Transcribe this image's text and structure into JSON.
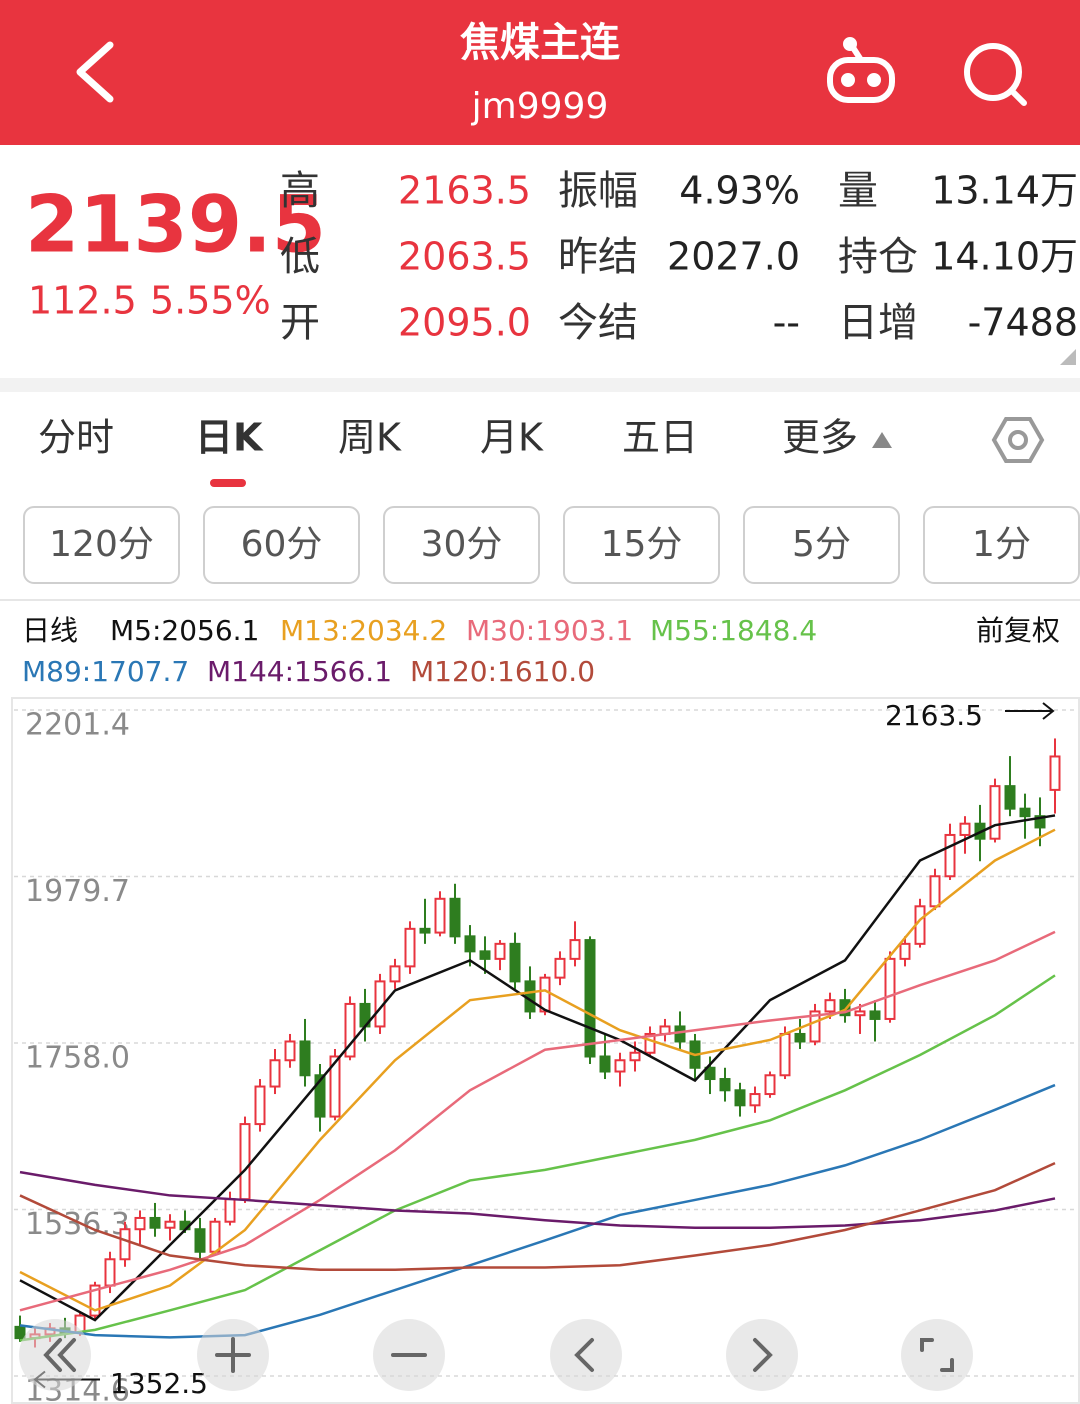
{
  "header": {
    "title": "焦煤主连",
    "code": "jm9999"
  },
  "quote": {
    "price": "2139.5",
    "change": "112.5",
    "change_pct": "5.55%",
    "rows": [
      [
        "高",
        "2163.5",
        "振幅",
        "4.93%",
        "量",
        "13.14万"
      ],
      [
        "低",
        "2063.5",
        "昨结",
        "2027.0",
        "持仓",
        "14.10万"
      ],
      [
        "开",
        "2095.0",
        "今结",
        "--",
        "日增",
        "-7488"
      ]
    ]
  },
  "tabs": [
    "分时",
    "日K",
    "周K",
    "月K",
    "五日",
    "更多"
  ],
  "intervals": [
    "120分",
    "60分",
    "30分",
    "15分",
    "5分",
    "1分"
  ],
  "chart_data": {
    "type": "candlestick",
    "label": "日线",
    "adjust": "前复权",
    "up_color": "#e8343f",
    "down_color": "#2e7d1f",
    "open": [
      1380,
      1365,
      1370,
      1378,
      1372,
      1395,
      1435,
      1470,
      1510,
      1525,
      1512,
      1520,
      1510,
      1480,
      1520,
      1550,
      1650,
      1700,
      1735,
      1760,
      1715,
      1660,
      1740,
      1810,
      1780,
      1840,
      1860,
      1910,
      1905,
      1950,
      1900,
      1880,
      1870,
      1890,
      1840,
      1800,
      1845,
      1870,
      1895,
      1740,
      1720,
      1735,
      1745,
      1770,
      1780,
      1760,
      1725,
      1710,
      1695,
      1675,
      1690,
      1715,
      1770,
      1760,
      1800,
      1815,
      1795,
      1800,
      1790,
      1870,
      1890,
      1940,
      1980,
      2035,
      2050,
      2030,
      2100,
      2070,
      2060,
      2095
    ],
    "high": [
      1395,
      1378,
      1385,
      1392,
      1400,
      1440,
      1480,
      1520,
      1535,
      1545,
      1530,
      1535,
      1525,
      1525,
      1560,
      1660,
      1710,
      1750,
      1770,
      1790,
      1730,
      1750,
      1820,
      1830,
      1850,
      1870,
      1920,
      1950,
      1960,
      1970,
      1915,
      1900,
      1895,
      1905,
      1860,
      1850,
      1880,
      1920,
      1900,
      1770,
      1745,
      1760,
      1780,
      1790,
      1800,
      1770,
      1740,
      1725,
      1705,
      1700,
      1720,
      1780,
      1790,
      1810,
      1825,
      1830,
      1810,
      1815,
      1880,
      1900,
      1950,
      1990,
      2050,
      2060,
      2075,
      2110,
      2140,
      2090,
      2085,
      2163.5
    ],
    "low": [
      1360,
      1352.5,
      1360,
      1365,
      1368,
      1390,
      1425,
      1460,
      1490,
      1500,
      1495,
      1505,
      1470,
      1475,
      1515,
      1545,
      1640,
      1690,
      1725,
      1700,
      1640,
      1655,
      1735,
      1760,
      1770,
      1830,
      1850,
      1890,
      1900,
      1890,
      1860,
      1850,
      1855,
      1830,
      1790,
      1795,
      1835,
      1860,
      1730,
      1710,
      1700,
      1720,
      1740,
      1760,
      1750,
      1710,
      1690,
      1680,
      1660,
      1665,
      1685,
      1710,
      1750,
      1755,
      1790,
      1785,
      1770,
      1760,
      1785,
      1860,
      1885,
      1935,
      1975,
      2010,
      2000,
      2025,
      2060,
      2030,
      2020,
      2063.5
    ],
    "close": [
      1365,
      1370,
      1378,
      1372,
      1395,
      1435,
      1470,
      1510,
      1525,
      1512,
      1520,
      1510,
      1480,
      1520,
      1550,
      1650,
      1700,
      1735,
      1760,
      1715,
      1660,
      1740,
      1810,
      1780,
      1840,
      1860,
      1910,
      1905,
      1950,
      1900,
      1880,
      1870,
      1890,
      1840,
      1800,
      1845,
      1870,
      1895,
      1740,
      1720,
      1735,
      1745,
      1770,
      1780,
      1760,
      1725,
      1710,
      1695,
      1675,
      1690,
      1715,
      1770,
      1760,
      1800,
      1815,
      1795,
      1800,
      1790,
      1870,
      1890,
      1940,
      1980,
      2035,
      2050,
      2030,
      2100,
      2070,
      2060,
      2045,
      2139.5
    ],
    "ma_x": [
      0,
      5,
      10,
      15,
      20,
      25,
      30,
      35,
      40,
      45,
      50,
      55,
      60,
      65,
      69
    ],
    "series": [
      {
        "name": "M5:2056.1",
        "color": "#111111",
        "values": [
          1442,
          1389,
          1489,
          1589,
          1708,
          1828,
          1868,
          1802,
          1762,
          1708,
          1815,
          1868,
          2001,
          2048,
          2061
        ]
      },
      {
        "name": "M13:2034.2",
        "color": "#e8a020",
        "values": [
          1453,
          1402,
          1435,
          1509,
          1629,
          1735,
          1815,
          1828,
          1775,
          1742,
          1762,
          1802,
          1922,
          2001,
          2042
        ]
      },
      {
        "name": "M30:1903.1",
        "color": "#e86a7a",
        "values": [
          1402,
          1429,
          1456,
          1489,
          1549,
          1615,
          1695,
          1749,
          1762,
          1775,
          1788,
          1799,
          1835,
          1868,
          1906
        ]
      },
      {
        "name": "M55:1848.4",
        "color": "#66c24a",
        "values": [
          1362,
          1376,
          1402,
          1429,
          1482,
          1535,
          1575,
          1589,
          1609,
          1629,
          1655,
          1695,
          1742,
          1795,
          1848
        ]
      },
      {
        "name": "M89:1707.7",
        "color": "#2a77b5",
        "values": [
          1382,
          1369,
          1366,
          1369,
          1396,
          1429,
          1462,
          1495,
          1529,
          1549,
          1569,
          1595,
          1629,
          1669,
          1702
        ]
      },
      {
        "name": "M144:1566.1",
        "color": "#6a1b6a",
        "values": [
          1586,
          1569,
          1555,
          1549,
          1542,
          1535,
          1531,
          1522,
          1515,
          1512,
          1512,
          1515,
          1522,
          1535,
          1551
        ]
      },
      {
        "name": "M120:1610.0",
        "color": "#b24a3a",
        "values": [
          1555,
          1509,
          1475,
          1462,
          1456,
          1456,
          1459,
          1459,
          1462,
          1475,
          1489,
          1509,
          1535,
          1562,
          1598
        ]
      }
    ],
    "ylim": [
      1282.6,
      2214.7
    ],
    "yticks": [
      2201.4,
      1979.7,
      {
        "value": 1758,
        "label": "1758.0"
      },
      1536.3,
      1314.6
    ],
    "grid": true,
    "high_marker": 2163.5,
    "low_marker": 1352.5
  }
}
